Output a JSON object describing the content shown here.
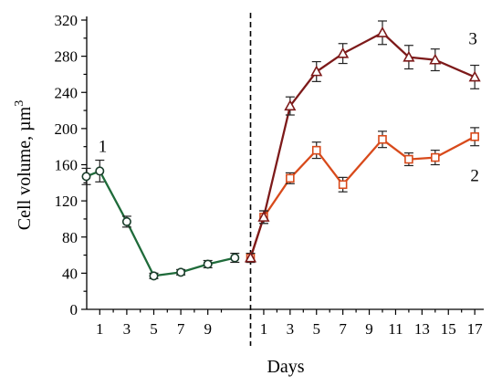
{
  "chart_data": {
    "type": "line",
    "xlabel": "Days",
    "ylabel": "Cell volume, µm",
    "ylabel_superscript": "3",
    "yticks": [
      0,
      40,
      80,
      120,
      160,
      200,
      240,
      280,
      320
    ],
    "ylim": [
      0,
      320
    ],
    "grid": false,
    "x_segments": [
      {
        "ticks": [
          "1",
          "3",
          "5",
          "7",
          "9"
        ]
      },
      {
        "ticks": [
          "1",
          "3",
          "5",
          "7",
          "9",
          "11",
          "13",
          "15",
          "17"
        ]
      }
    ],
    "divider": {
      "style": "dashed",
      "between_segments": true
    },
    "series": [
      {
        "name": "1",
        "marker": "circle",
        "color": "#1f6b3a",
        "points": [
          {
            "segment": 0,
            "day": 0,
            "value": 147,
            "error": 9
          },
          {
            "segment": 0,
            "day": 1,
            "value": 153,
            "error": 12
          },
          {
            "segment": 0,
            "day": 3,
            "value": 97,
            "error": 6
          },
          {
            "segment": 0,
            "day": 5,
            "value": 37,
            "error": 3
          },
          {
            "segment": 0,
            "day": 7,
            "value": 41,
            "error": 3
          },
          {
            "segment": 0,
            "day": 9,
            "value": 50,
            "error": 4
          },
          {
            "segment": 0,
            "day": 11,
            "value": 57,
            "error": 5
          }
        ]
      },
      {
        "name": "2",
        "marker": "square",
        "color": "#d84a1b",
        "points": [
          {
            "segment": 1,
            "day": 0,
            "value": 57,
            "error": 5
          },
          {
            "segment": 1,
            "day": 1,
            "value": 102,
            "error": 7
          },
          {
            "segment": 1,
            "day": 3,
            "value": 145,
            "error": 6
          },
          {
            "segment": 1,
            "day": 5,
            "value": 176,
            "error": 9
          },
          {
            "segment": 1,
            "day": 7,
            "value": 138,
            "error": 8
          },
          {
            "segment": 1,
            "day": 10,
            "value": 188,
            "error": 9
          },
          {
            "segment": 1,
            "day": 12,
            "value": 166,
            "error": 7
          },
          {
            "segment": 1,
            "day": 14,
            "value": 168,
            "error": 8
          },
          {
            "segment": 1,
            "day": 17,
            "value": 191,
            "error": 10
          }
        ]
      },
      {
        "name": "3",
        "marker": "triangle",
        "color": "#7d1a1a",
        "points": [
          {
            "segment": 1,
            "day": 0,
            "value": 57,
            "error": 5
          },
          {
            "segment": 1,
            "day": 1,
            "value": 102,
            "error": 7
          },
          {
            "segment": 1,
            "day": 3,
            "value": 225,
            "error": 10
          },
          {
            "segment": 1,
            "day": 5,
            "value": 263,
            "error": 11
          },
          {
            "segment": 1,
            "day": 7,
            "value": 283,
            "error": 11
          },
          {
            "segment": 1,
            "day": 10,
            "value": 306,
            "error": 13
          },
          {
            "segment": 1,
            "day": 12,
            "value": 279,
            "error": 13
          },
          {
            "segment": 1,
            "day": 14,
            "value": 276,
            "error": 12
          },
          {
            "segment": 1,
            "day": 17,
            "value": 257,
            "error": 13
          }
        ]
      }
    ]
  }
}
